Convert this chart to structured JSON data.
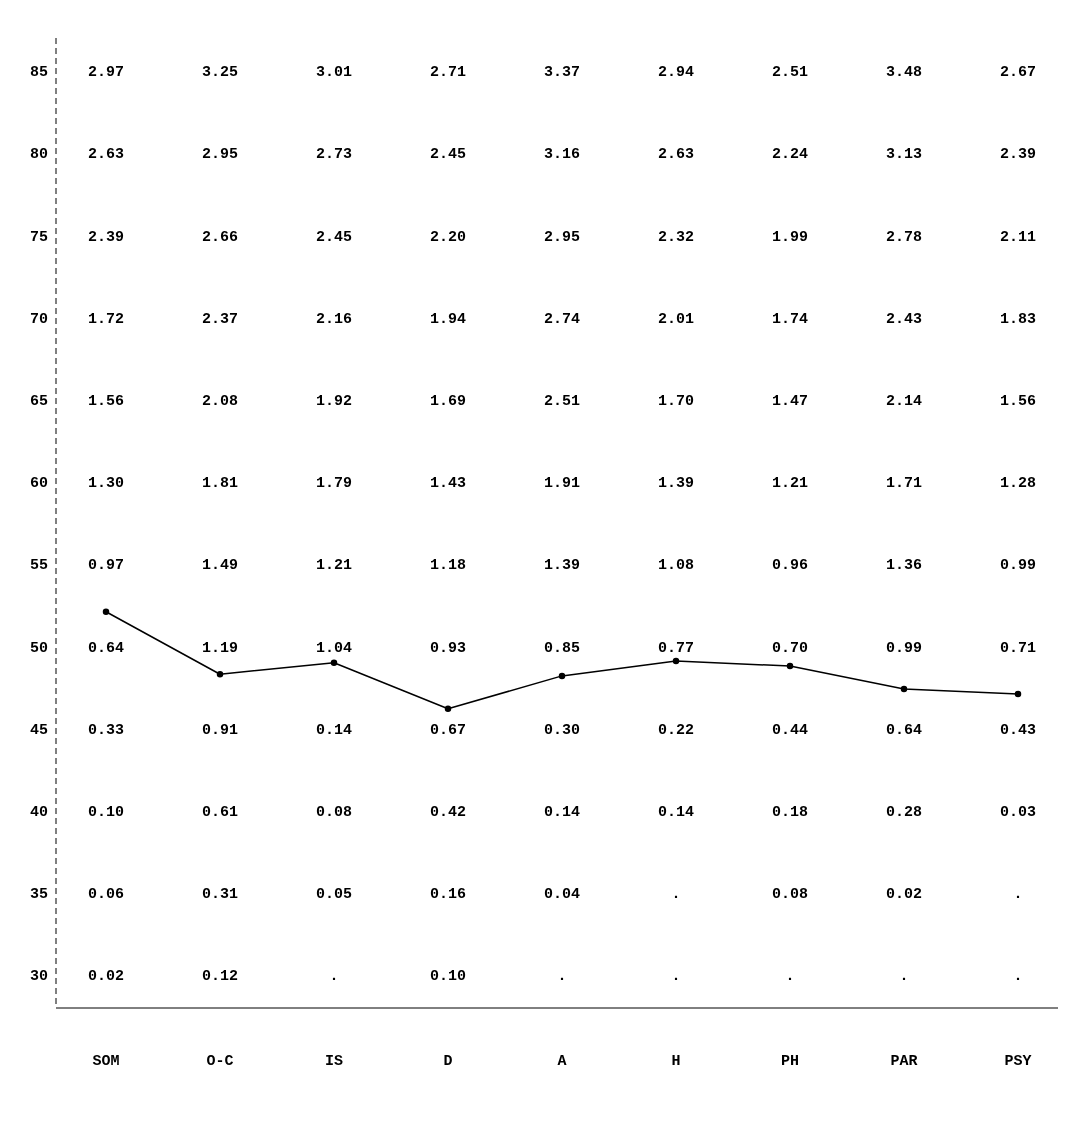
{
  "chart_data": {
    "type": "line",
    "categories": [
      "SOM",
      "O-C",
      "IS",
      "D",
      "A",
      "H",
      "PH",
      "PAR",
      "PSY"
    ],
    "series": [
      {
        "color": "#000000",
        "values": [
          52.1,
          48.3,
          49.0,
          46.2,
          48.2,
          49.1,
          48.8,
          47.4,
          47.1
        ]
      }
    ],
    "ylim": [
      28,
      87
    ],
    "yticks": [
      30,
      35,
      40,
      45,
      50,
      55,
      60,
      65,
      70,
      75,
      80,
      85
    ],
    "grid": false,
    "marker": "circle",
    "line_style": "solid",
    "annotations": [
      "2.97",
      "3.25",
      "3.01",
      "2.71",
      "3.37",
      "2.94",
      "2.51",
      "3.48",
      "2.67",
      "2.63",
      "2.95",
      "2.73",
      "2.45",
      "3.16",
      "2.63",
      "2.24",
      "3.13",
      "2.39",
      "2.39",
      "2.66",
      "2.45",
      "2.20",
      "2.95",
      "2.32",
      "1.99",
      "2.78",
      "2.11",
      "1.72",
      "2.37",
      "2.16",
      "1.94",
      "2.74",
      "2.01",
      "1.74",
      "2.43",
      "1.83",
      "1.56",
      "2.08",
      "1.92",
      "1.69",
      "2.51",
      "1.70",
      "1.47",
      "2.14",
      "1.56",
      "1.30",
      "1.81",
      "1.79",
      "1.43",
      "1.91",
      "1.39",
      "1.21",
      "1.71",
      "1.28",
      "0.97",
      "1.49",
      "1.21",
      "1.18",
      "1.39",
      "1.08",
      "0.96",
      "1.36",
      "0.99",
      "0.64",
      "1.19",
      "1.04",
      "0.93",
      "0.85",
      "0.77",
      "0.70",
      "0.99",
      "0.71",
      "0.33",
      "0.91",
      "0.14",
      "0.67",
      "0.30",
      "0.22",
      "0.44",
      "0.64",
      "0.43",
      "0.10",
      "0.61",
      "0.08",
      "0.42",
      "0.14",
      "0.14",
      "0.18",
      "0.28",
      "0.03",
      "0.06",
      "0.31",
      "0.05",
      "0.16",
      "0.04",
      ".",
      "0.08",
      "0.02",
      ".",
      "0.02",
      "0.12",
      ".",
      "0.10",
      ".",
      ".",
      ".",
      ".",
      "."
    ]
  }
}
